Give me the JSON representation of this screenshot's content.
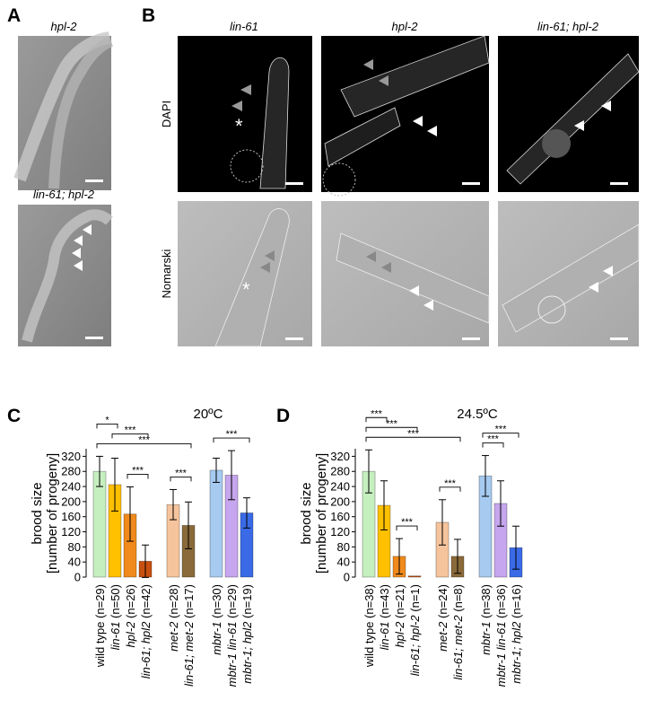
{
  "panel_a": {
    "letter": "A",
    "top_label": "hpl-2",
    "bottom_label": "lin-61; hpl-2"
  },
  "panel_b": {
    "letter": "B",
    "columns": [
      "lin-61",
      "hpl-2",
      "lin-61; hpl-2"
    ],
    "rows": [
      "DAPI",
      "Nomarski"
    ],
    "marker": "*"
  },
  "chart_data": [
    {
      "type": "bar",
      "panel": "C",
      "title": "20ºC",
      "ylabel": [
        "brood size",
        "[number of progeny]"
      ],
      "categories": [
        "wild type",
        "lin-61",
        "hpl-2",
        "lin-61; hpl2",
        "met-2",
        "lin-61; met-2",
        "mbtr-1",
        "mbtr-1 lin-61",
        "mbtr-1; hpl2"
      ],
      "n_labels": [
        "(n=29)",
        "(n=50)",
        "(n=26)",
        "(n=42)",
        "(n=28)",
        "(n=17)",
        "(n=30)",
        "(n=29)",
        "(n=19)"
      ],
      "colors": [
        "#c6efc0",
        "#ffc000",
        "#f08a1c",
        "#c8500e",
        "#f6c49c",
        "#8a6a3a",
        "#a6caf0",
        "#c6a6ee",
        "#3a6ae6"
      ],
      "values": [
        280,
        245,
        167,
        42,
        192,
        137,
        283,
        270,
        170
      ],
      "errors": [
        40,
        70,
        72,
        43,
        40,
        62,
        32,
        65,
        40
      ],
      "ylim": [
        0,
        340
      ],
      "yticks": [
        0,
        40,
        80,
        120,
        160,
        200,
        240,
        280,
        320
      ],
      "brackets": [
        {
          "from": 2,
          "to": 3,
          "label": "***"
        },
        {
          "from": 4,
          "to": 5,
          "label": "***"
        },
        {
          "from": 0,
          "to": 5,
          "label": "***"
        },
        {
          "from": 1,
          "to": 3,
          "label": "***"
        },
        {
          "from": 0,
          "to": 1,
          "label": "*"
        },
        {
          "from": 6,
          "to": 8,
          "label": "***"
        }
      ]
    },
    {
      "type": "bar",
      "panel": "D",
      "title": "24.5ºC",
      "ylabel": [
        "brood size",
        "[number of progeny]"
      ],
      "categories": [
        "wild type",
        "lin-61",
        "hpl-2",
        "lin-61; hpl-2",
        "met-2",
        "lin-61; met-2",
        "mbtr-1",
        "mbtr-1 lin-61",
        "mbtr-1; hpl2"
      ],
      "n_labels": [
        "(n=38)",
        "(n=43)",
        "(n=21)",
        "(n=1)",
        "(n=24)",
        "(n=8)",
        "(n=38)",
        "(n=36)",
        "(n=16)"
      ],
      "colors": [
        "#c6efc0",
        "#ffc000",
        "#f08a1c",
        "#c8500e",
        "#f6c49c",
        "#8a6a3a",
        "#a6caf0",
        "#c6a6ee",
        "#3a6ae6"
      ],
      "values": [
        280,
        190,
        55,
        3,
        145,
        55,
        268,
        195,
        78
      ],
      "errors": [
        57,
        65,
        47,
        null,
        60,
        45,
        54,
        60,
        57
      ],
      "ylim": [
        0,
        340
      ],
      "yticks": [
        0,
        40,
        80,
        120,
        160,
        200,
        240,
        280,
        320
      ],
      "brackets": [
        {
          "from": 2,
          "to": 3,
          "label": "***"
        },
        {
          "from": 4,
          "to": 5,
          "label": "***"
        },
        {
          "from": 0,
          "to": 5,
          "label": "***"
        },
        {
          "from": 0,
          "to": 3,
          "label": "***"
        },
        {
          "from": 0,
          "to": 1,
          "label": "***"
        },
        {
          "from": 6,
          "to": 7,
          "label": "***"
        },
        {
          "from": 6,
          "to": 8,
          "label": "***"
        }
      ]
    }
  ]
}
